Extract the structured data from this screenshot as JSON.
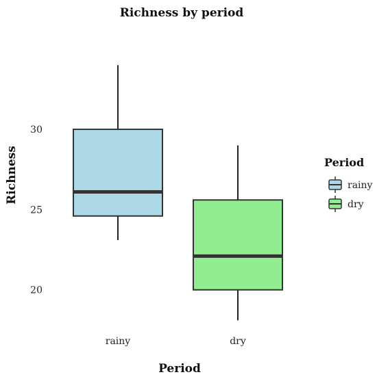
{
  "chart_data": {
    "type": "box",
    "title": "Richness by period",
    "xlabel": "Period",
    "ylabel": "Richness",
    "categories": [
      "rainy",
      "dry"
    ],
    "colors": [
      "#add8e6",
      "#90ee90"
    ],
    "boxes": [
      {
        "category": "rainy",
        "min": 23.1,
        "q1": 24.6,
        "median": 26.1,
        "q3": 30.0,
        "max": 34.0
      },
      {
        "category": "dry",
        "min": 18.1,
        "q1": 20.0,
        "median": 22.1,
        "q3": 25.6,
        "max": 29.0
      }
    ],
    "yticks": [
      20,
      25,
      30
    ],
    "ylim": [
      17.6,
      35.5
    ],
    "grid": false,
    "legend": {
      "title": "Period",
      "entries": [
        "rainy",
        "dry"
      ],
      "placement": "right"
    }
  }
}
